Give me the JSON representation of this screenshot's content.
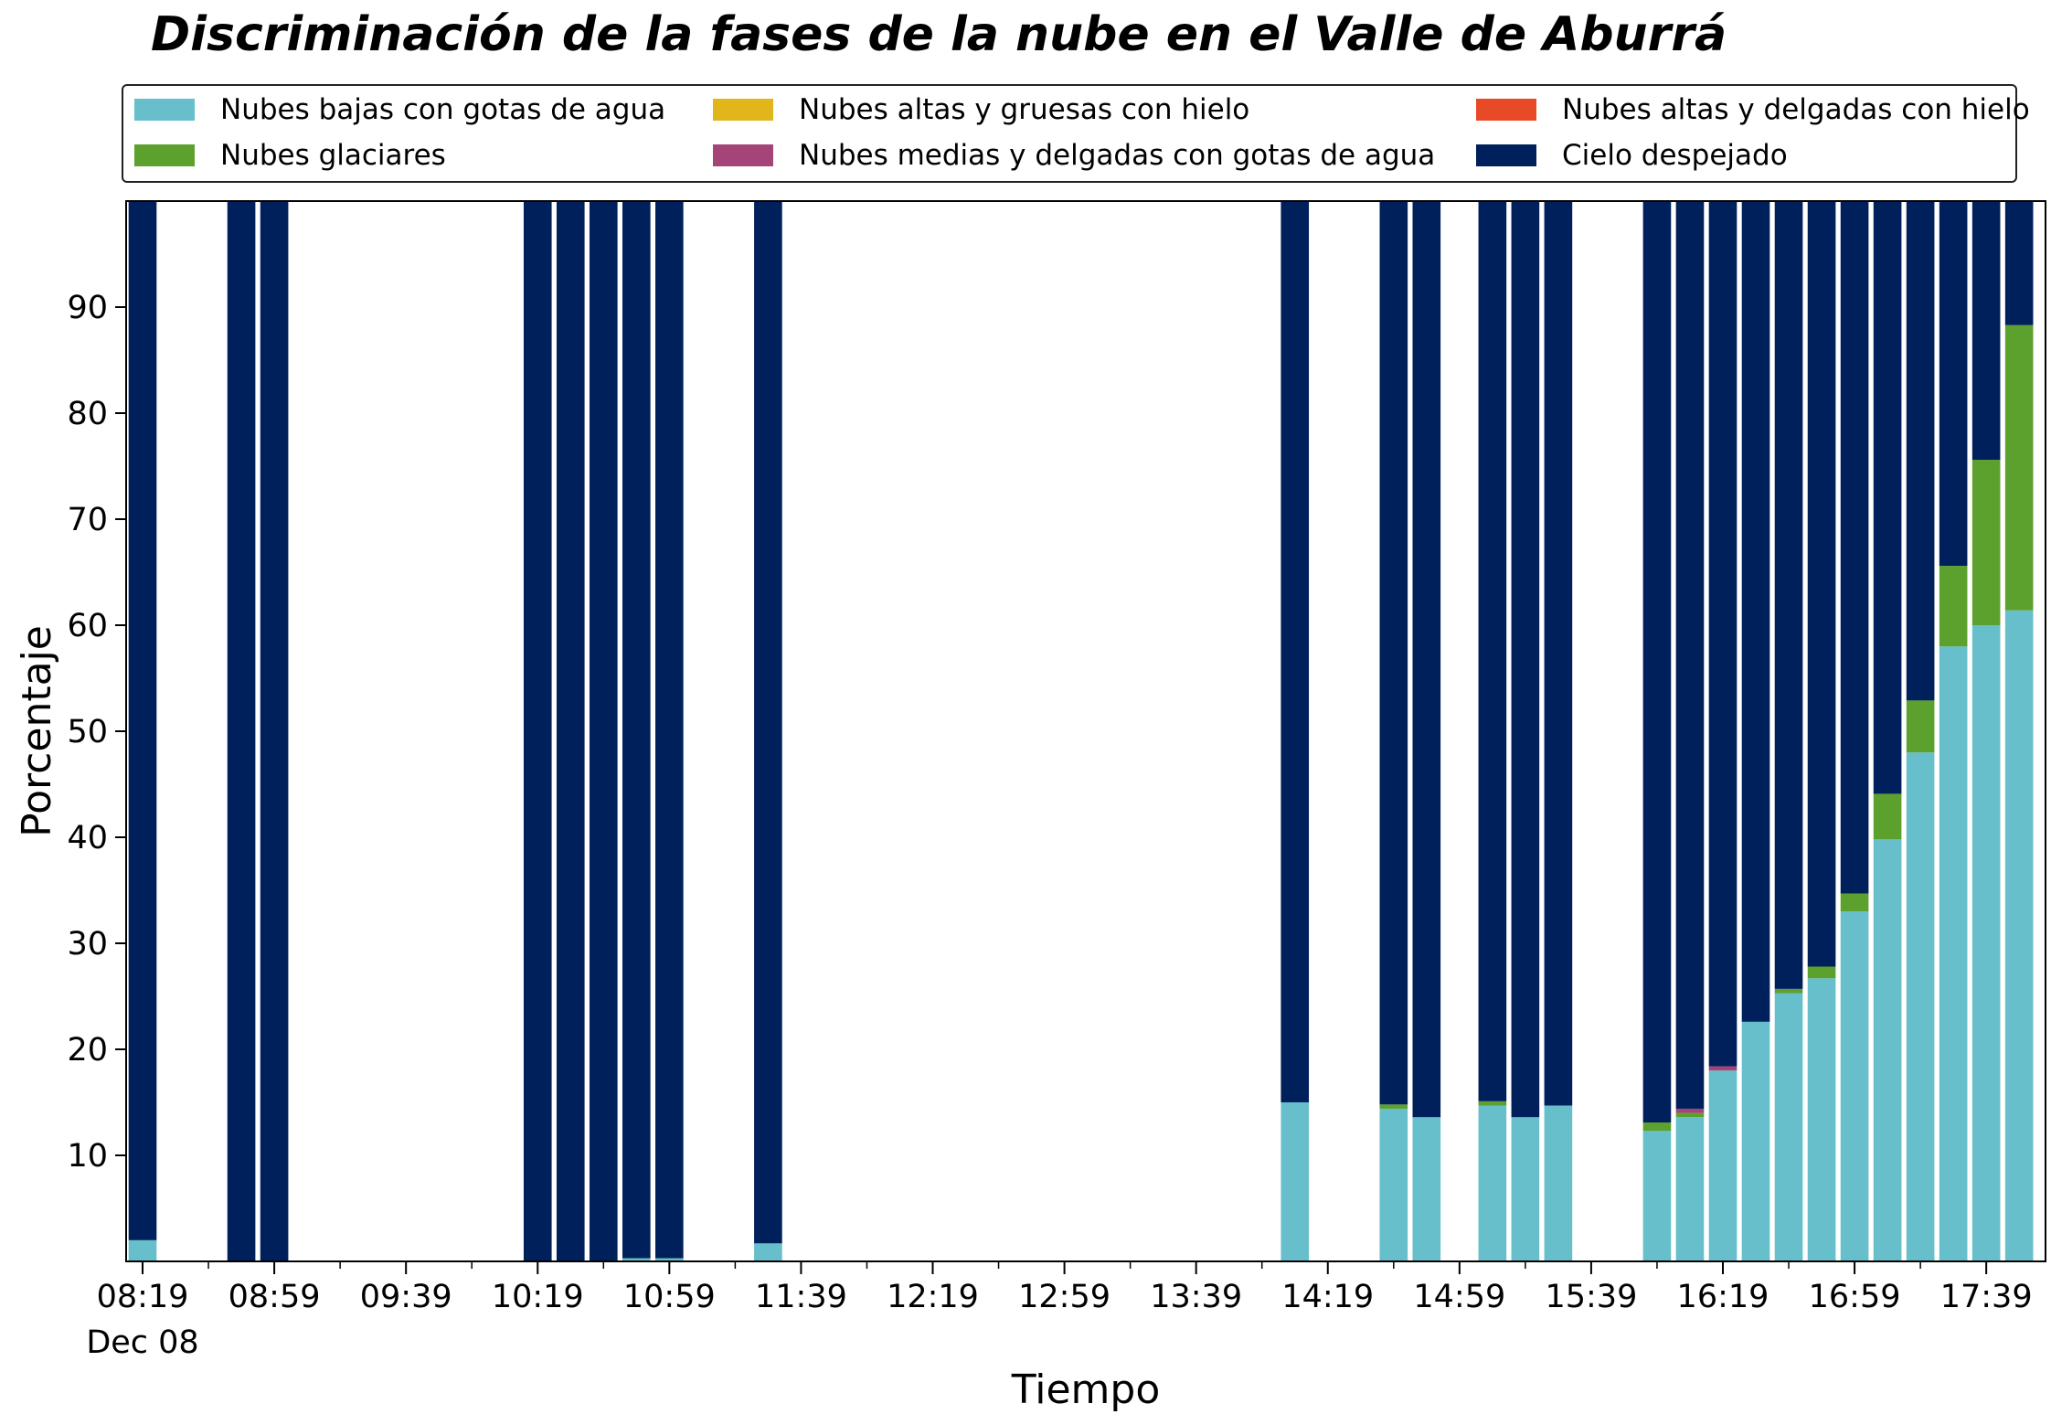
{
  "chart_data": {
    "type": "bar",
    "stacked": true,
    "title": "Discriminación de la fases de la nube en el Valle de Aburrá",
    "xlabel": "Tiempo",
    "ylabel": "Porcentaje",
    "ylim": [
      0,
      100
    ],
    "yticks": [
      10,
      20,
      30,
      40,
      50,
      60,
      70,
      80,
      90
    ],
    "xlim": [
      "08:14",
      "17:57"
    ],
    "xticks": [
      "08:19",
      "08:59",
      "09:39",
      "10:19",
      "10:59",
      "11:39",
      "12:19",
      "12:59",
      "13:39",
      "14:19",
      "14:59",
      "15:39",
      "16:19",
      "16:59",
      "17:39"
    ],
    "xtick_date": "Dec 08",
    "bar_width_minutes": 8.5,
    "legend_position": "top",
    "grid": false,
    "x": [
      "08:19",
      "08:49",
      "08:59",
      "10:19",
      "10:29",
      "10:39",
      "10:49",
      "10:59",
      "11:29",
      "14:09",
      "14:39",
      "14:49",
      "15:09",
      "15:19",
      "15:29",
      "15:59",
      "16:09",
      "16:19",
      "16:29",
      "16:39",
      "16:49",
      "16:59",
      "17:09",
      "17:19",
      "17:29",
      "17:39",
      "17:49"
    ],
    "series": [
      {
        "name": "Nubes bajas con gotas de agua",
        "color": "#66BFCA",
        "values": [
          2,
          0,
          0,
          0,
          0,
          0,
          0.3,
          0.3,
          1.7,
          15,
          14.4,
          13.6,
          14.7,
          13.6,
          14.7,
          12.3,
          13.6,
          18,
          22.6,
          25.3,
          26.7,
          33,
          39.8,
          48,
          58,
          60,
          61.4
        ]
      },
      {
        "name": "Nubes glaciares",
        "color": "#5CA12E",
        "values": [
          0,
          0,
          0,
          0,
          0,
          0,
          0,
          0,
          0,
          0,
          0.4,
          0,
          0.4,
          0,
          0,
          0.8,
          0.4,
          0,
          0,
          0.4,
          1.1,
          1.7,
          4.3,
          4.9,
          7.6,
          15.6,
          26.9
        ]
      },
      {
        "name": "Nubes altas y gruesas con hielo",
        "color": "#E0B61A",
        "values": [
          0,
          0,
          0,
          0,
          0,
          0,
          0,
          0,
          0,
          0,
          0,
          0,
          0,
          0,
          0,
          0,
          0,
          0,
          0,
          0,
          0,
          0,
          0,
          0,
          0,
          0,
          0
        ]
      },
      {
        "name": "Nubes medias y delgadas con gotas de agua",
        "color": "#A44478",
        "values": [
          0,
          0,
          0,
          0,
          0,
          0,
          0,
          0,
          0,
          0,
          0,
          0,
          0,
          0,
          0,
          0,
          0.4,
          0.4,
          0,
          0,
          0,
          0,
          0,
          0,
          0,
          0,
          0
        ]
      },
      {
        "name": "Nubes altas y delgadas con hielo",
        "color": "#E84A27",
        "values": [
          0,
          0,
          0,
          0,
          0,
          0,
          0,
          0,
          0,
          0,
          0,
          0,
          0,
          0,
          0,
          0,
          0,
          0,
          0,
          0,
          0,
          0,
          0,
          0,
          0,
          0,
          0
        ]
      },
      {
        "name": "Cielo despejado",
        "color": "#00205B",
        "values": [
          98,
          100,
          100,
          100,
          100,
          100,
          99.7,
          99.7,
          98.3,
          85,
          85.2,
          86.4,
          84.9,
          86.4,
          85.3,
          86.9,
          85.6,
          81.6,
          77.4,
          74.3,
          72.2,
          65.3,
          55.9,
          47.1,
          34.4,
          24.4,
          11.7
        ]
      }
    ]
  }
}
